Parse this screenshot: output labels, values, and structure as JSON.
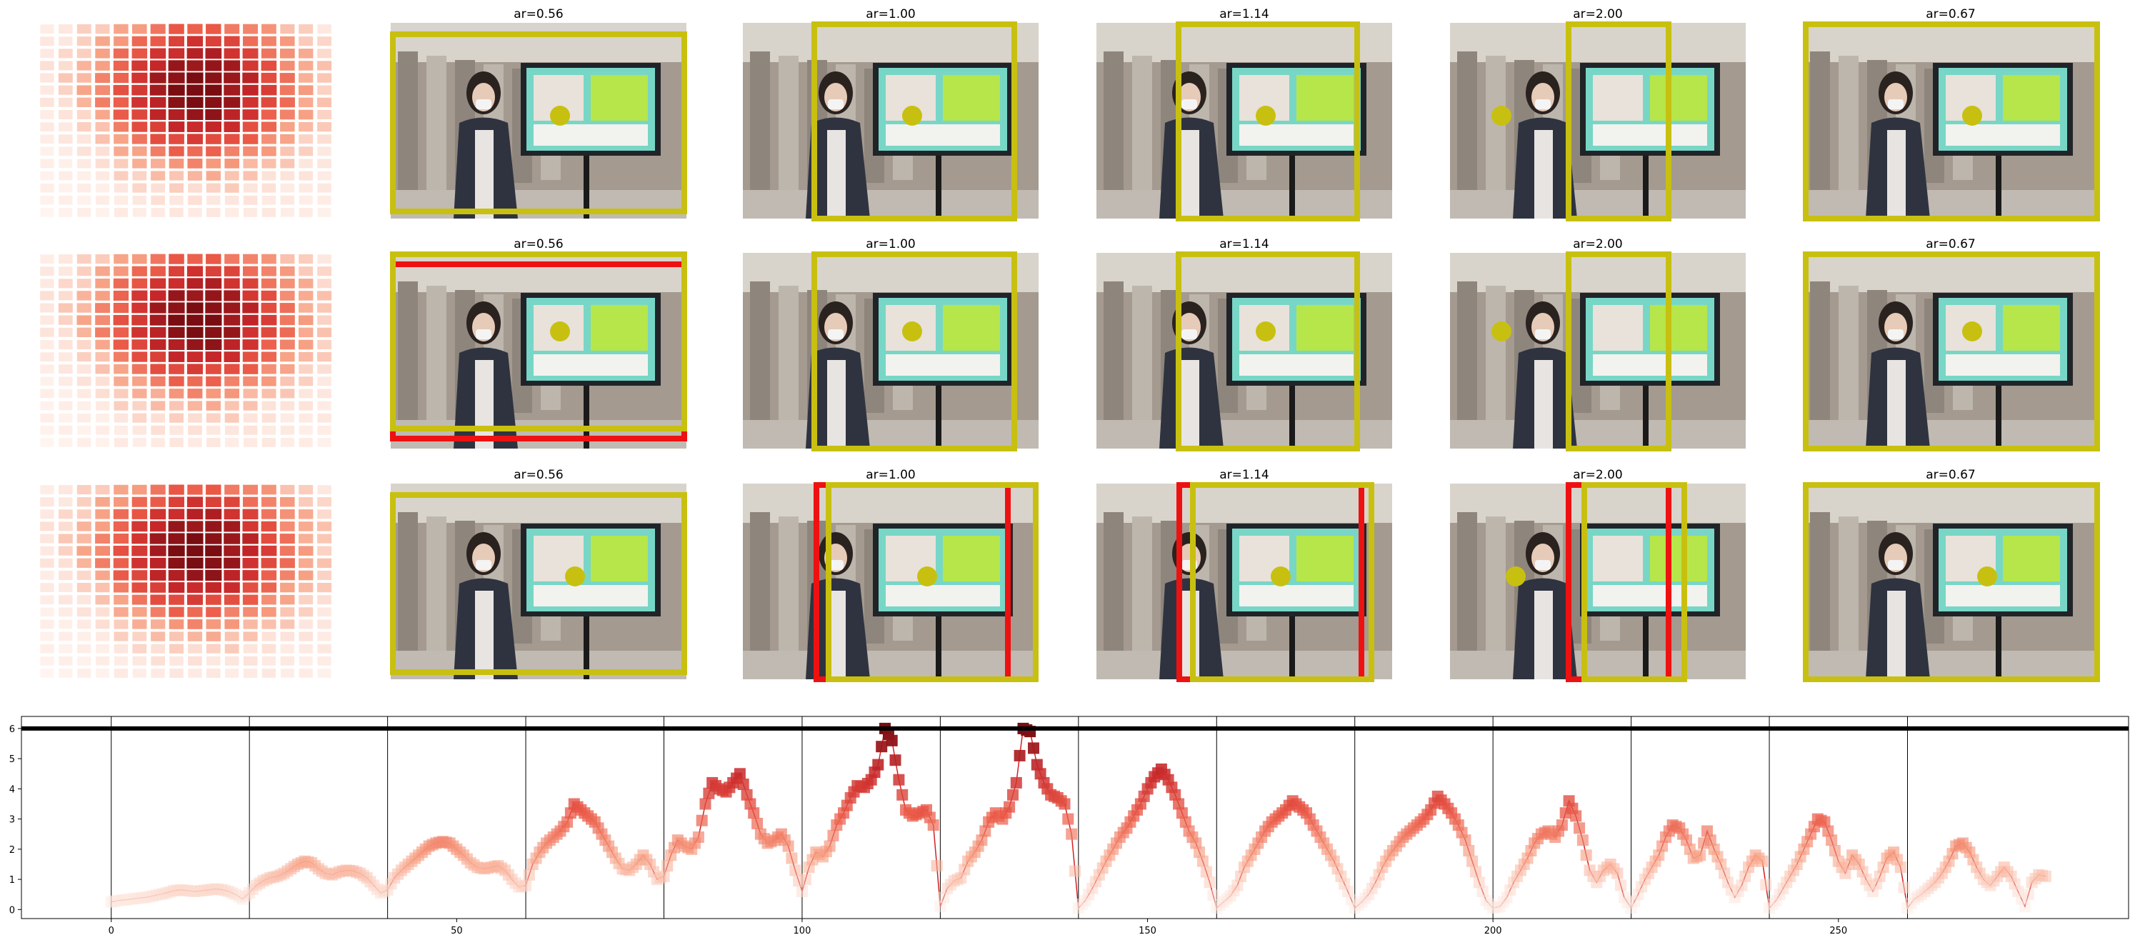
{
  "grid": {
    "rows": 3,
    "cols": 6,
    "titles": [
      "",
      "ar=0.56",
      "ar=1.00",
      "ar=1.14",
      "ar=2.00",
      "ar=0.67"
    ]
  },
  "colors": {
    "box_yellow": "#c8c010",
    "box_red": "#ee1111",
    "dot_yellow": "#c8c010",
    "line_red": "#d42020",
    "heat_low": "#fde5dc",
    "heat_high": "#7a0d12",
    "photo_bg": "#a49a8f",
    "monitor_screen": "#78d6c6",
    "monitor_frame": "#202428"
  },
  "chart_data": {
    "type": "line",
    "title": "",
    "xlabel": "",
    "ylabel": "",
    "xlim": [
      -13,
      292
    ],
    "ylim": [
      -0.3,
      6.4
    ],
    "xticks": [
      0,
      50,
      100,
      150,
      200,
      250
    ],
    "yticks": [
      0,
      1,
      2,
      3,
      4,
      5,
      6
    ],
    "threshold": 6,
    "vlines": [
      0,
      20,
      40,
      60,
      80,
      100,
      120,
      140,
      160,
      180,
      200,
      220,
      240,
      260
    ],
    "segments": [
      [
        0.25,
        0.3,
        0.32,
        0.35,
        0.38,
        0.4,
        0.45,
        0.5,
        0.55,
        0.62,
        0.65,
        0.63,
        0.6,
        0.62,
        0.65,
        0.68,
        0.66,
        0.6,
        0.5,
        0.35
      ],
      [
        0.55,
        0.8,
        0.95,
        1.05,
        1.1,
        1.2,
        1.35,
        1.5,
        1.6,
        1.55,
        1.35,
        1.2,
        1.15,
        1.25,
        1.3,
        1.28,
        1.2,
        1.05,
        0.8,
        0.55
      ],
      [
        0.65,
        1.05,
        1.3,
        1.5,
        1.7,
        1.9,
        2.1,
        2.2,
        2.25,
        2.2,
        2.0,
        1.8,
        1.55,
        1.4,
        1.35,
        1.4,
        1.45,
        1.3,
        1.0,
        0.75
      ],
      [
        0.8,
        1.5,
        1.9,
        2.2,
        2.4,
        2.6,
        2.9,
        3.5,
        3.3,
        3.1,
        2.9,
        2.5,
        2.1,
        1.7,
        1.35,
        1.3,
        1.5,
        1.8,
        1.5,
        1.0
      ],
      [
        1.1,
        1.8,
        2.3,
        2.1,
        2.0,
        2.4,
        3.5,
        4.2,
        4.0,
        3.9,
        4.2,
        4.5,
        3.8,
        3.2,
        2.5,
        2.2,
        2.3,
        2.5,
        2.1,
        1.3
      ],
      [
        0.6,
        1.4,
        1.9,
        1.75,
        2.1,
        2.8,
        3.2,
        3.7,
        4.1,
        4.05,
        4.3,
        4.8,
        6.0,
        5.6,
        4.3,
        3.3,
        3.1,
        3.2,
        3.3,
        2.8
      ],
      [
        0.1,
        0.7,
        0.95,
        1.05,
        1.6,
        1.9,
        2.3,
        2.9,
        3.2,
        3.0,
        3.4,
        4.2,
        6.0,
        5.9,
        4.8,
        4.2,
        3.8,
        3.7,
        3.5,
        2.5
      ],
      [
        0.05,
        0.3,
        0.7,
        1.15,
        1.6,
        2.0,
        2.4,
        2.7,
        3.1,
        3.5,
        4.0,
        4.4,
        4.65,
        4.3,
        3.8,
        3.2,
        2.6,
        2.2,
        1.6,
        0.9
      ],
      [
        0.05,
        0.25,
        0.45,
        0.8,
        1.4,
        1.8,
        2.2,
        2.6,
        2.9,
        3.1,
        3.3,
        3.6,
        3.4,
        3.2,
        2.8,
        2.4,
        2.0,
        1.6,
        1.1,
        0.6
      ],
      [
        0.05,
        0.25,
        0.5,
        0.9,
        1.4,
        1.8,
        2.1,
        2.4,
        2.6,
        2.8,
        3.0,
        3.3,
        3.75,
        3.5,
        3.2,
        2.8,
        2.3,
        1.6,
        0.9,
        0.3
      ],
      [
        0.05,
        0.1,
        0.4,
        0.9,
        1.3,
        1.7,
        2.2,
        2.5,
        2.6,
        2.4,
        2.8,
        3.6,
        3.1,
        2.3,
        1.3,
        0.9,
        1.3,
        1.5,
        1.2,
        0.4
      ],
      [
        0.05,
        0.5,
        1.0,
        1.4,
        1.8,
        2.4,
        2.8,
        2.7,
        2.3,
        1.7,
        1.8,
        2.6,
        2.0,
        1.5,
        0.9,
        0.4,
        0.8,
        1.4,
        1.8,
        1.6
      ],
      [
        0.05,
        0.3,
        0.7,
        1.1,
        1.5,
        2.0,
        2.5,
        3.0,
        2.9,
        2.3,
        1.6,
        1.2,
        1.8,
        1.5,
        1.0,
        0.6,
        1.1,
        1.7,
        1.9,
        1.4
      ],
      [
        0.05,
        0.35,
        0.5,
        0.7,
        0.9,
        1.2,
        1.6,
        2.1,
        2.2,
        1.9,
        1.4,
        1.0,
        0.8,
        1.1,
        1.4,
        1.1,
        0.6,
        0.1,
        0.9,
        1.15,
        1.1
      ]
    ]
  }
}
